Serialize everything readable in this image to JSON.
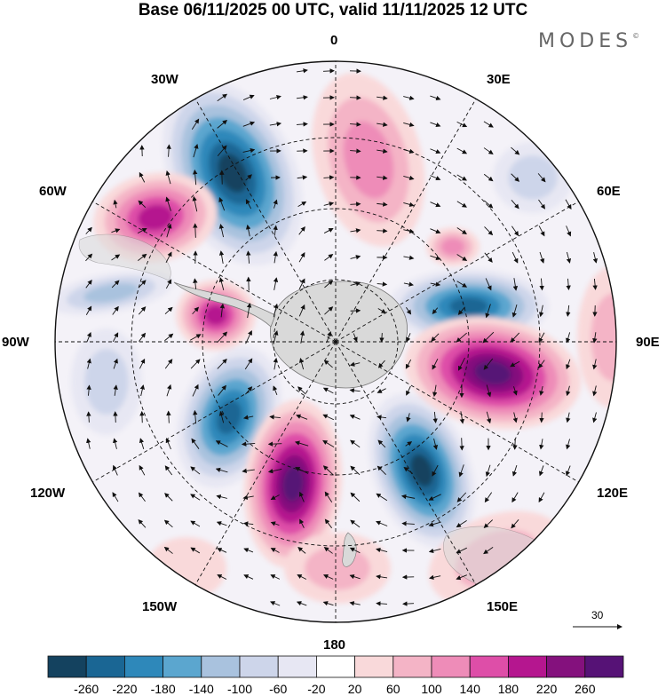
{
  "title": "Base 06/11/2025 00 UTC, valid 11/11/2025 12 UTC",
  "brand": "MODES",
  "brand_mark": "©",
  "longitude_labels": {
    "top": "0",
    "top_right": "30E",
    "right_upper": "60E",
    "right": "90E",
    "right_lower": "120E",
    "bottom_right": "150E",
    "bottom": "180",
    "bottom_left": "150W",
    "left_lower": "120W",
    "left": "90W",
    "left_upper": "60W",
    "top_left": "30W"
  },
  "reference_vector": {
    "label": "30"
  },
  "colorbar": {
    "ticks": [
      "-260",
      "-220",
      "-180",
      "-140",
      "-100",
      "-60",
      "-20",
      "20",
      "60",
      "100",
      "140",
      "180",
      "220",
      "260"
    ],
    "colors": [
      "#14425f",
      "#1a6694",
      "#2e88ba",
      "#5ba6cf",
      "#a9c2de",
      "#cdd5ea",
      "#e7e7f3",
      "#ffffff",
      "#f9d9da",
      "#f4b4c6",
      "#ee8cb8",
      "#de4ea8",
      "#b5168f",
      "#84117d",
      "#561276"
    ]
  },
  "colors": {
    "ocean": "#ffffff",
    "land": "#d9d9d9",
    "grid": "#111111",
    "vectors": "#111111"
  }
}
